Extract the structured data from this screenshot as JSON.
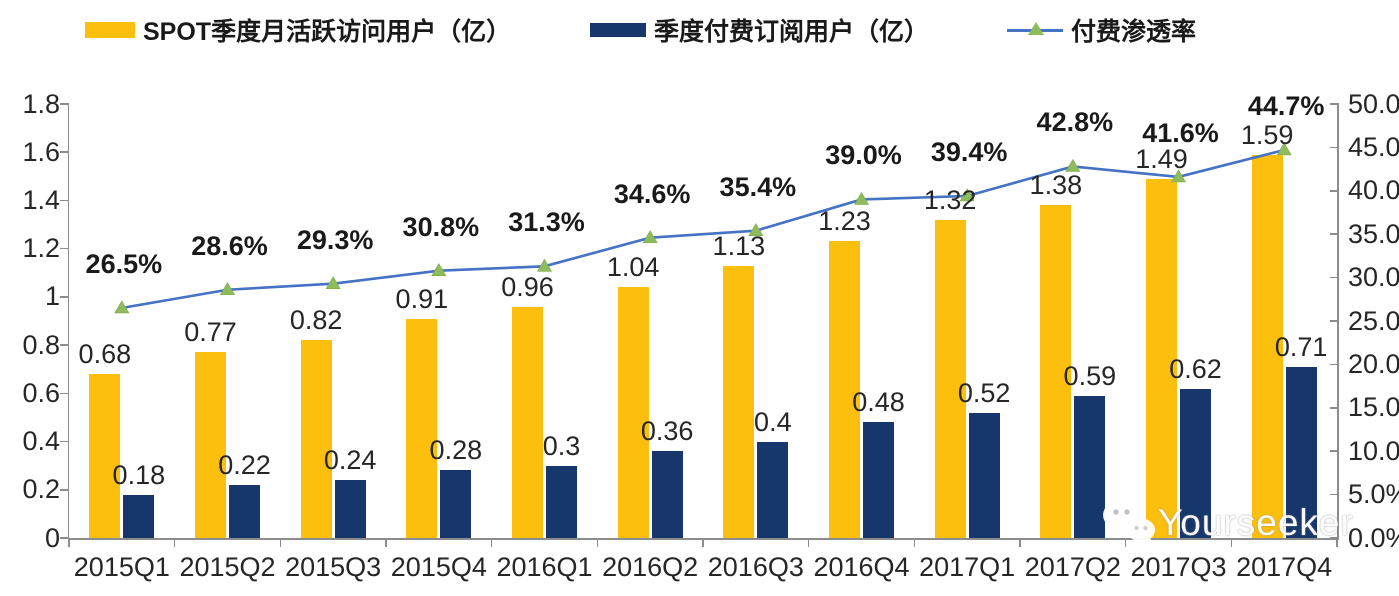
{
  "legend": [
    {
      "label": "SPOT季度月活跃访问用户（亿）",
      "color": "#FCBF0D",
      "type": "bar"
    },
    {
      "label": "季度付费订阅用户（亿）",
      "color": "#17366B",
      "type": "bar"
    },
    {
      "label": "付费渗透率",
      "color": "#4472C4",
      "marker_color": "#8EBC5C",
      "type": "line"
    }
  ],
  "chart_data": {
    "type": "combo-bar-line",
    "categories": [
      "2015Q1",
      "2015Q2",
      "2015Q3",
      "2015Q4",
      "2016Q1",
      "2016Q2",
      "2016Q3",
      "2016Q4",
      "2017Q1",
      "2017Q2",
      "2017Q3",
      "2017Q4"
    ],
    "series": [
      {
        "name": "SPOT季度月活跃访问用户（亿）",
        "type": "bar",
        "axis": "left",
        "color": "#FCBF0D",
        "values": [
          0.68,
          0.77,
          0.82,
          0.91,
          0.96,
          1.04,
          1.13,
          1.23,
          1.32,
          1.38,
          1.49,
          1.59
        ],
        "labels": [
          "0.68",
          "0.77",
          "0.82",
          "0.91",
          "0.96",
          "1.04",
          "1.13",
          "1.23",
          "1.32",
          "1.38",
          "1.49",
          "1.59"
        ]
      },
      {
        "name": "季度付费订阅用户（亿）",
        "type": "bar",
        "axis": "left",
        "color": "#17366B",
        "values": [
          0.18,
          0.22,
          0.24,
          0.28,
          0.3,
          0.36,
          0.4,
          0.48,
          0.52,
          0.59,
          0.62,
          0.71
        ],
        "labels": [
          "0.18",
          "0.22",
          "0.24",
          "0.28",
          "0.3",
          "0.36",
          "0.4",
          "0.48",
          "0.52",
          "0.59",
          "0.62",
          "0.71"
        ]
      },
      {
        "name": "付费渗透率",
        "type": "line",
        "axis": "right",
        "color": "#4472C4",
        "marker_color": "#8EBC5C",
        "values": [
          26.5,
          28.6,
          29.3,
          30.8,
          31.3,
          34.6,
          35.4,
          39.0,
          39.4,
          42.8,
          41.6,
          44.7
        ],
        "labels": [
          "26.5%",
          "28.6%",
          "29.3%",
          "30.8%",
          "31.3%",
          "34.6%",
          "35.4%",
          "39.0%",
          "39.4%",
          "42.8%",
          "41.6%",
          "44.7%"
        ]
      }
    ],
    "left_axis": {
      "min": 0,
      "max": 1.8,
      "step": 0.2,
      "tick_labels": [
        "0",
        "0.2",
        "0.4",
        "0.6",
        "0.8",
        "1",
        "1.2",
        "1.4",
        "1.6",
        "1.8"
      ]
    },
    "right_axis": {
      "min": 0,
      "max": 50,
      "step": 5,
      "tick_labels": [
        "0.0%",
        "5.0%",
        "10.0%",
        "15.0%",
        "20.0%",
        "25.0%",
        "30.0%",
        "35.0%",
        "40.0%",
        "45.0%",
        "50.0%"
      ]
    },
    "grid": false,
    "legend_position": "top",
    "title": ""
  },
  "watermark": {
    "text": "Yourseeker",
    "icon": "wechat-icon"
  }
}
